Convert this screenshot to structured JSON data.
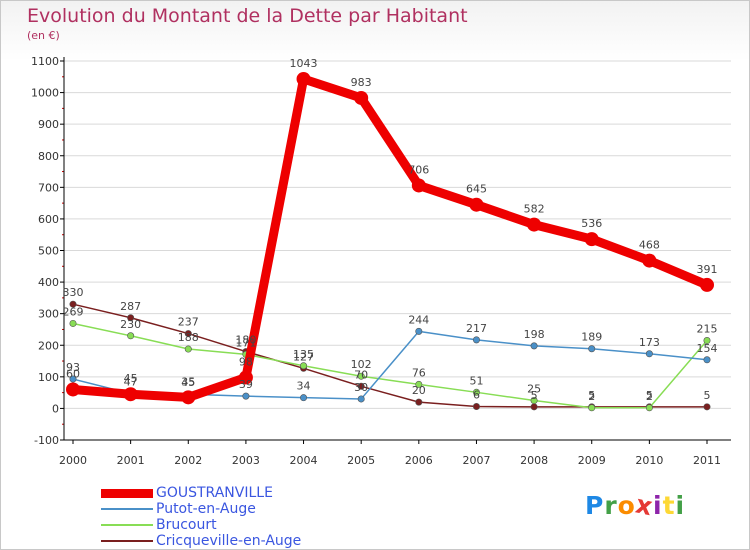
{
  "header": {
    "title": "Evolution du Montant de la Dette par Habitant",
    "unit": "(en €)"
  },
  "colors": {
    "background": "#ffffff",
    "axis": "#000000",
    "grid": "#d9d9d9",
    "title": "#b03060",
    "legend_text": "#3a56e0"
  },
  "logo": {
    "letters": [
      "P",
      "r",
      "o",
      "x",
      "i",
      "t",
      "i"
    ],
    "colors": [
      "#1e88e5",
      "#43a047",
      "#fb8c00",
      "#e53935",
      "#8e24aa",
      "#fdd835",
      "#43a047"
    ]
  },
  "chart_data": {
    "type": "line",
    "categories": [
      "2000",
      "2001",
      "2002",
      "2003",
      "2004",
      "2005",
      "2006",
      "2007",
      "2008",
      "2009",
      "2010",
      "2011"
    ],
    "ylim": [
      -100,
      1100
    ],
    "yticks": [
      -100,
      0,
      100,
      200,
      300,
      400,
      500,
      600,
      700,
      800,
      900,
      1000,
      1100
    ],
    "grid": "horizontal",
    "legend_position": "bottom-left",
    "series": [
      {
        "name": "GOUSTRANVILLE",
        "color": "#ee0000",
        "values": [
          60,
          45,
          35,
          98,
          1043,
          983,
          706,
          645,
          582,
          536,
          468,
          391
        ],
        "labels": [
          "60",
          "45",
          "35",
          "98",
          "1043",
          "983",
          "706",
          "645",
          "582",
          "536",
          "468",
          "391"
        ]
      },
      {
        "name": "Putot-en-Auge",
        "color": "#4a90c8",
        "values": [
          93,
          47,
          45,
          39,
          34,
          30,
          244,
          217,
          198,
          189,
          173,
          154
        ],
        "labels": [
          "93",
          "47",
          "45",
          "39",
          "34",
          "30",
          "244",
          "217",
          "198",
          "189",
          "173",
          "154"
        ]
      },
      {
        "name": "Brucourt",
        "color": "#88dd55",
        "values": [
          269,
          230,
          188,
          171,
          135,
          102,
          76,
          51,
          25,
          2,
          2,
          215
        ],
        "labels": [
          "269",
          "230",
          "188",
          "171",
          "135",
          "102",
          "76",
          "51",
          "25",
          "2",
          "2",
          "215"
        ]
      },
      {
        "name": "Cricqueville-en-Auge",
        "color": "#7a1f1f",
        "values": [
          330,
          287,
          237,
          180,
          127,
          70,
          20,
          6,
          5,
          5,
          5,
          5
        ],
        "labels": [
          "330",
          "287",
          "237",
          "180",
          "127",
          "70",
          "20",
          "6",
          "5",
          "5",
          "5",
          "5"
        ]
      }
    ]
  }
}
